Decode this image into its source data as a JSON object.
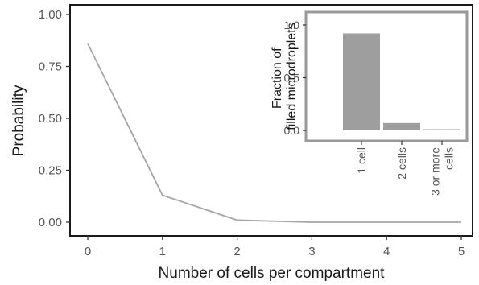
{
  "chart_data": [
    {
      "type": "line",
      "xlabel": "Number of cells per compartment",
      "ylabel": "Probability",
      "x": [
        0,
        1,
        2,
        3,
        4,
        5
      ],
      "series": [
        {
          "values": [
            0.86,
            0.13,
            0.01,
            0.0,
            0.0,
            0.0
          ]
        }
      ],
      "xlim": [
        0,
        5
      ],
      "ylim": [
        0,
        1
      ],
      "xticks": [
        "0",
        "1",
        "2",
        "3",
        "4",
        "5"
      ],
      "yticks": [
        "0.00",
        "0.25",
        "0.50",
        "0.75",
        "1.00"
      ],
      "grid": false,
      "line_color": "#a6a6a6"
    },
    {
      "type": "bar",
      "ylabel_lines": [
        "Fraction of",
        "filled microdroplets"
      ],
      "categories": [
        "1 cell",
        "2 cells",
        "3 or more cells"
      ],
      "category_label_lines": [
        [
          "1 cell"
        ],
        [
          "2 cells"
        ],
        [
          "3 or more",
          "cells"
        ]
      ],
      "values": [
        0.92,
        0.07,
        0.01
      ],
      "ylim": [
        0,
        1
      ],
      "yticks": [
        "0.0",
        "0.5",
        "1.0"
      ],
      "grid": false,
      "bar_color": "#9e9e9e",
      "frame_color": "#999999"
    }
  ]
}
